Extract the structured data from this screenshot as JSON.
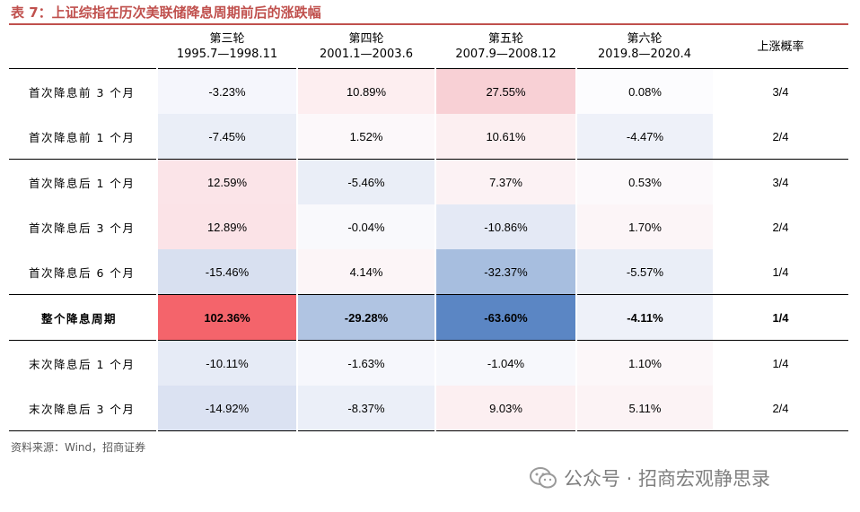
{
  "title": "表 7：上证综指在历次美联储降息周期前后的涨跌幅",
  "columns": [
    {
      "name": "第三轮",
      "period": "1995.7—1998.11"
    },
    {
      "name": "第四轮",
      "period": "2001.1—2003.6"
    },
    {
      "name": "第五轮",
      "period": "2007.9—2008.12"
    },
    {
      "name": "第六轮",
      "period": "2019.8—2020.4"
    },
    {
      "name": "上涨概率",
      "period": ""
    }
  ],
  "rows": [
    {
      "label": "首次降息前 3 个月",
      "values": [
        "-3.23%",
        "10.89%",
        "27.55%",
        "0.08%"
      ],
      "prob": "3/4"
    },
    {
      "label": "首次降息前 1 个月",
      "values": [
        "-7.45%",
        "1.52%",
        "10.61%",
        "-4.47%"
      ],
      "prob": "2/4"
    },
    {
      "label": "首次降息后 1 个月",
      "values": [
        "12.59%",
        "-5.46%",
        "7.37%",
        "0.53%"
      ],
      "prob": "3/4"
    },
    {
      "label": "首次降息后 3 个月",
      "values": [
        "12.89%",
        "-0.04%",
        "-10.86%",
        "1.70%"
      ],
      "prob": "2/4"
    },
    {
      "label": "首次降息后 6 个月",
      "values": [
        "-15.46%",
        "4.14%",
        "-32.37%",
        "-5.57%"
      ],
      "prob": "1/4"
    },
    {
      "label": "整个降息周期",
      "values": [
        "102.36%",
        "-29.28%",
        "-63.60%",
        "-4.11%"
      ],
      "prob": "1/4"
    },
    {
      "label": "末次降息后 1 个月",
      "values": [
        "-10.11%",
        "-1.63%",
        "-1.04%",
        "1.10%"
      ],
      "prob": "1/4"
    },
    {
      "label": "末次降息后 3 个月",
      "values": [
        "-14.92%",
        "-8.37%",
        "9.03%",
        "5.11%"
      ],
      "prob": "2/4"
    }
  ],
  "cell_colors": [
    [
      "#f5f6fc",
      "#fdeef0",
      "#f8d0d5",
      "#fcfcfe"
    ],
    [
      "#eaeef7",
      "#fcf8fa",
      "#fceff1",
      "#eef1f9"
    ],
    [
      "#fbe4e8",
      "#eaeef7",
      "#fcf2f4",
      "#fcf9fb"
    ],
    [
      "#fbe3e7",
      "#f9f9fc",
      "#e4e9f5",
      "#fcf5f7"
    ],
    [
      "#d8e0f0",
      "#fcf5f7",
      "#a7bedf",
      "#eaeef7"
    ],
    [
      "#f4646b",
      "#b0c4e2",
      "#5b86c4",
      "#eef1f9"
    ],
    [
      "#e6ebf6",
      "#f6f7fc",
      "#f7f8fc",
      "#fcf7f9"
    ],
    [
      "#dbe2f2",
      "#ebeff8",
      "#fceff1",
      "#fcf3f5"
    ]
  ],
  "source": "资料来源：Wind，招商证券",
  "watermark": "公众号 · 招商宏观静思录"
}
